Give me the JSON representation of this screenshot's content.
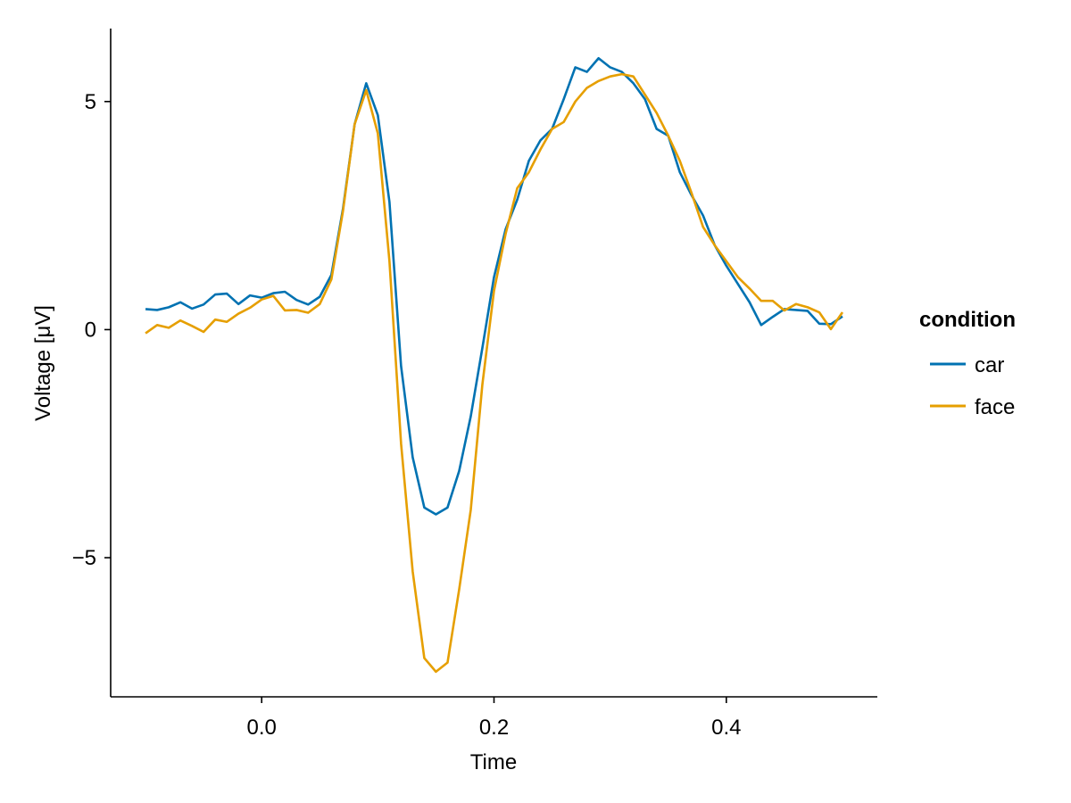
{
  "chart_data": {
    "type": "line",
    "xlabel": "Time",
    "ylabel": "Voltage [μV]",
    "xlim": [
      -0.13,
      0.53
    ],
    "ylim": [
      -8.05,
      6.6
    ],
    "xticks": [
      0.0,
      0.2,
      0.4
    ],
    "xtick_labels": [
      "0.0",
      "0.2",
      "0.4"
    ],
    "yticks": [
      -5,
      0,
      5
    ],
    "ytick_labels": [
      "−5",
      "0",
      "5"
    ],
    "grid": false,
    "legend": {
      "title": "condition",
      "placement": "right"
    },
    "x": [
      -0.1,
      -0.09,
      -0.08,
      -0.07,
      -0.06,
      -0.05,
      -0.04,
      -0.03,
      -0.02,
      -0.01,
      0.0,
      0.01,
      0.02,
      0.03,
      0.04,
      0.05,
      0.06,
      0.07,
      0.08,
      0.09,
      0.1,
      0.11,
      0.12,
      0.13,
      0.14,
      0.15,
      0.16,
      0.17,
      0.18,
      0.19,
      0.2,
      0.21,
      0.22,
      0.23,
      0.24,
      0.25,
      0.26,
      0.27,
      0.28,
      0.29,
      0.3,
      0.31,
      0.32,
      0.33,
      0.34,
      0.35,
      0.36,
      0.37,
      0.38,
      0.39,
      0.4,
      0.41,
      0.42,
      0.43,
      0.44,
      0.45,
      0.46,
      0.47,
      0.48,
      0.49,
      0.5
    ],
    "series": [
      {
        "name": "car",
        "color": "#0072B2",
        "values": [
          0.45,
          0.43,
          0.49,
          0.6,
          0.46,
          0.55,
          0.77,
          0.79,
          0.56,
          0.75,
          0.7,
          0.8,
          0.83,
          0.65,
          0.55,
          0.72,
          1.2,
          2.65,
          4.5,
          5.4,
          4.7,
          2.8,
          -0.8,
          -2.8,
          -3.9,
          -4.05,
          -3.9,
          -3.1,
          -1.9,
          -0.4,
          1.15,
          2.2,
          2.85,
          3.7,
          4.15,
          4.4,
          5.05,
          5.75,
          5.65,
          5.95,
          5.75,
          5.65,
          5.4,
          5.05,
          4.4,
          4.25,
          3.45,
          2.95,
          2.5,
          1.85,
          1.4,
          1.0,
          0.6,
          0.1,
          0.28,
          0.45,
          0.43,
          0.41,
          0.13,
          0.12,
          0.29
        ]
      },
      {
        "name": "face",
        "color": "#E69F00",
        "values": [
          -0.08,
          0.1,
          0.04,
          0.2,
          0.08,
          -0.05,
          0.22,
          0.17,
          0.35,
          0.48,
          0.66,
          0.74,
          0.42,
          0.43,
          0.37,
          0.56,
          1.1,
          2.6,
          4.5,
          5.25,
          4.3,
          1.5,
          -2.5,
          -5.3,
          -7.2,
          -7.5,
          -7.3,
          -5.7,
          -3.95,
          -1.2,
          0.85,
          2.1,
          3.1,
          3.45,
          3.95,
          4.4,
          4.55,
          5.0,
          5.3,
          5.45,
          5.55,
          5.6,
          5.55,
          5.15,
          4.75,
          4.25,
          3.7,
          3.0,
          2.25,
          1.85,
          1.5,
          1.15,
          0.9,
          0.63,
          0.63,
          0.42,
          0.56,
          0.49,
          0.38,
          0.01,
          0.38
        ]
      }
    ]
  }
}
